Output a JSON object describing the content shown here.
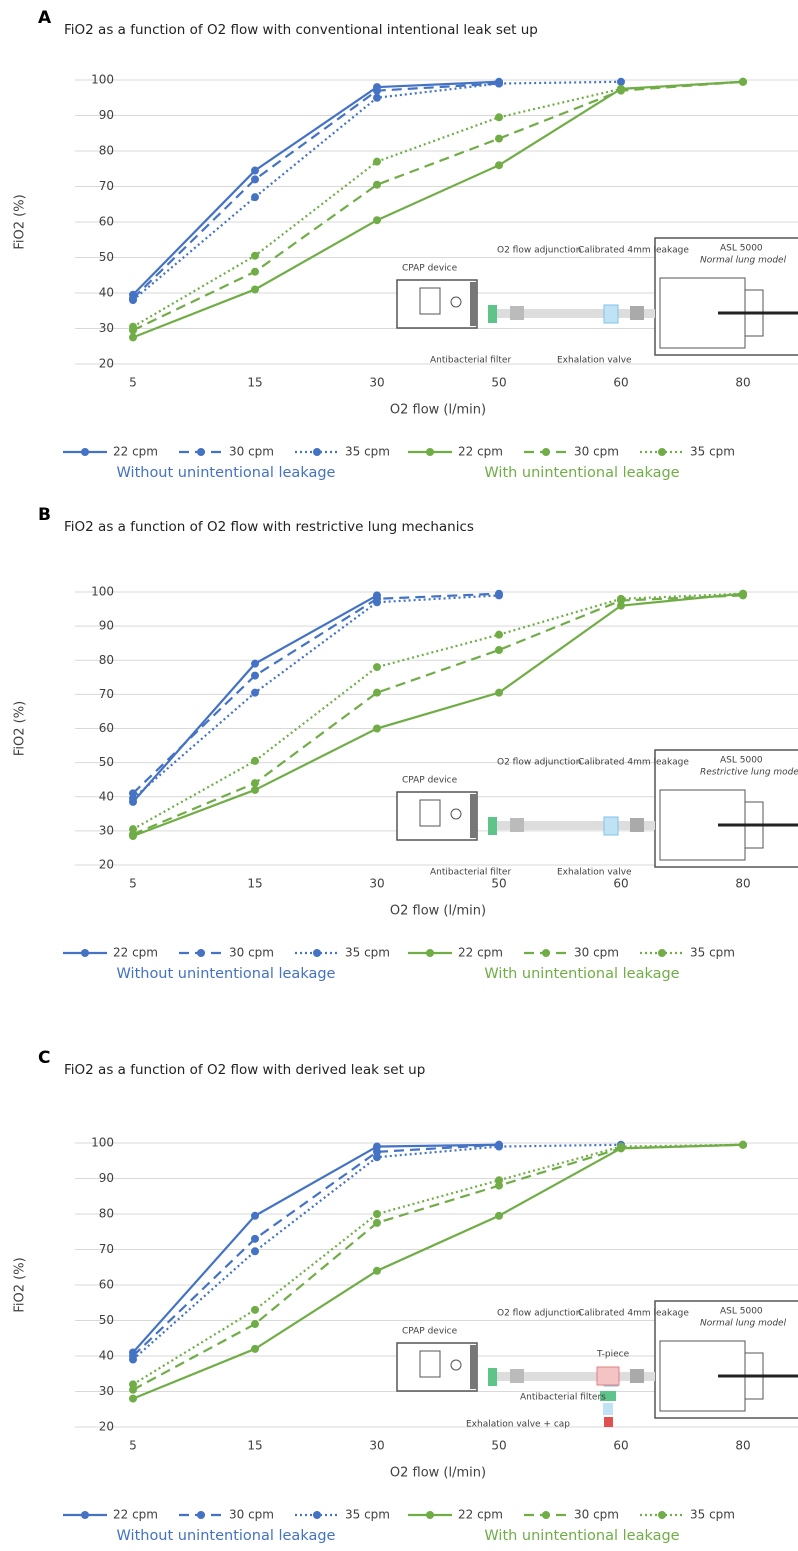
{
  "chart_data": [
    {
      "panel": "A",
      "type": "line",
      "title": "FiO2 as a function of O2 flow with conventional intentional leak set up",
      "x_label": "O2 flow (l/min)",
      "y_label": "FiO2 (%)",
      "categories": [
        5,
        15,
        30,
        50,
        60,
        80
      ],
      "ylim": [
        20,
        100
      ],
      "yticks": [
        20,
        30,
        40,
        50,
        60,
        70,
        80,
        90,
        100
      ],
      "grid": true,
      "series": [
        {
          "name": "22 cpm",
          "color": "#4472c4",
          "dash": "solid",
          "values": [
            39.5,
            74.5,
            98,
            99.5,
            null,
            null
          ]
        },
        {
          "name": "30 cpm",
          "color": "#4472c4",
          "dash": "dashed",
          "values": [
            38.5,
            72,
            97,
            99,
            null,
            null
          ]
        },
        {
          "name": "35 cpm",
          "color": "#4472c4",
          "dash": "dotted",
          "values": [
            38,
            67,
            95,
            99,
            99.5,
            null
          ]
        },
        {
          "name": "22 cpm",
          "color": "#70ad47",
          "dash": "solid",
          "values": [
            27.5,
            41,
            60.5,
            76,
            97.5,
            99.5
          ]
        },
        {
          "name": "30 cpm",
          "color": "#70ad47",
          "dash": "dashed",
          "values": [
            29.5,
            46,
            70.5,
            83.5,
            97,
            99.5
          ]
        },
        {
          "name": "35 cpm",
          "color": "#70ad47",
          "dash": "dotted",
          "values": [
            30.5,
            50.5,
            77,
            89.5,
            97.5,
            99.5
          ]
        }
      ],
      "legend_groups": [
        {
          "label": "Without unintentional leakage",
          "color": "#4472c4"
        },
        {
          "label": "With unintentional leakage",
          "color": "#70ad47"
        }
      ],
      "inset": {
        "device": "CPAP device",
        "adjunction": "O2 flow adjunction",
        "leakage": "Calibrated 4mm leakage",
        "simulator": "ASL 5000",
        "lung_model": "Normal lung model",
        "filter": "Antibacterial filter",
        "valve": "Exhalation valve"
      }
    },
    {
      "panel": "B",
      "type": "line",
      "title": "FiO2 as a function of O2 flow with restrictive lung mechanics",
      "x_label": "O2 flow (l/min)",
      "y_label": "FiO2 (%)",
      "categories": [
        5,
        15,
        30,
        50,
        60,
        80
      ],
      "ylim": [
        20,
        100
      ],
      "yticks": [
        20,
        30,
        40,
        50,
        60,
        70,
        80,
        90,
        100
      ],
      "grid": true,
      "series": [
        {
          "name": "22 cpm",
          "color": "#4472c4",
          "dash": "solid",
          "values": [
            38.5,
            79,
            99,
            null,
            null,
            null
          ]
        },
        {
          "name": "30 cpm",
          "color": "#4472c4",
          "dash": "dashed",
          "values": [
            41,
            75.5,
            98,
            99.5,
            null,
            null
          ]
        },
        {
          "name": "35 cpm",
          "color": "#4472c4",
          "dash": "dotted",
          "values": [
            39.5,
            70.5,
            97,
            99,
            null,
            null
          ]
        },
        {
          "name": "22 cpm",
          "color": "#70ad47",
          "dash": "solid",
          "values": [
            28.5,
            42,
            60,
            70.5,
            96,
            99.5
          ]
        },
        {
          "name": "30 cpm",
          "color": "#70ad47",
          "dash": "dashed",
          "values": [
            29,
            44,
            70.5,
            83,
            97.5,
            99
          ]
        },
        {
          "name": "35 cpm",
          "color": "#70ad47",
          "dash": "dotted",
          "values": [
            30.5,
            50.5,
            78,
            87.5,
            98,
            99.5
          ]
        }
      ],
      "legend_groups": [
        {
          "label": "Without unintentional leakage",
          "color": "#4472c4"
        },
        {
          "label": "With unintentional leakage",
          "color": "#70ad47"
        }
      ],
      "inset": {
        "device": "CPAP device",
        "adjunction": "O2 flow adjunction",
        "leakage": "Calibrated 4mm leakage",
        "simulator": "ASL 5000",
        "lung_model": "Restrictive lung model",
        "filter": "Antibacterial filter",
        "valve": "Exhalation valve"
      }
    },
    {
      "panel": "C",
      "type": "line",
      "title": "FiO2 as a function of O2 flow with derived leak set up",
      "x_label": "O2 flow (l/min)",
      "y_label": "FiO2 (%)",
      "categories": [
        5,
        15,
        30,
        50,
        60,
        80
      ],
      "ylim": [
        20,
        100
      ],
      "yticks": [
        20,
        30,
        40,
        50,
        60,
        70,
        80,
        90,
        100
      ],
      "grid": true,
      "series": [
        {
          "name": "22 cpm",
          "color": "#4472c4",
          "dash": "solid",
          "values": [
            41,
            79.5,
            99,
            99.5,
            null,
            null
          ]
        },
        {
          "name": "30 cpm",
          "color": "#4472c4",
          "dash": "dashed",
          "values": [
            40,
            73,
            97.5,
            99.5,
            null,
            null
          ]
        },
        {
          "name": "35 cpm",
          "color": "#4472c4",
          "dash": "dotted",
          "values": [
            39,
            69.5,
            96,
            99,
            99.5,
            null
          ]
        },
        {
          "name": "22 cpm",
          "color": "#70ad47",
          "dash": "solid",
          "values": [
            28,
            42,
            64,
            79.5,
            98.5,
            99.5
          ]
        },
        {
          "name": "30 cpm",
          "color": "#70ad47",
          "dash": "dashed",
          "values": [
            30.5,
            49,
            77.5,
            88,
            98.5,
            99.5
          ]
        },
        {
          "name": "35 cpm",
          "color": "#70ad47",
          "dash": "dotted",
          "values": [
            32,
            53,
            80,
            89.5,
            99,
            99.5
          ]
        }
      ],
      "legend_groups": [
        {
          "label": "Without unintentional leakage",
          "color": "#4472c4"
        },
        {
          "label": "With unintentional leakage",
          "color": "#70ad47"
        }
      ],
      "inset": {
        "device": "CPAP device",
        "adjunction": "O2 flow adjunction",
        "leakage": "Calibrated 4mm leakage",
        "t_piece": "T-piece",
        "simulator": "ASL 5000",
        "lung_model": "Normal lung model",
        "filter": "Antibacterial filters",
        "valve": "Exhalation valve + cap"
      }
    }
  ]
}
